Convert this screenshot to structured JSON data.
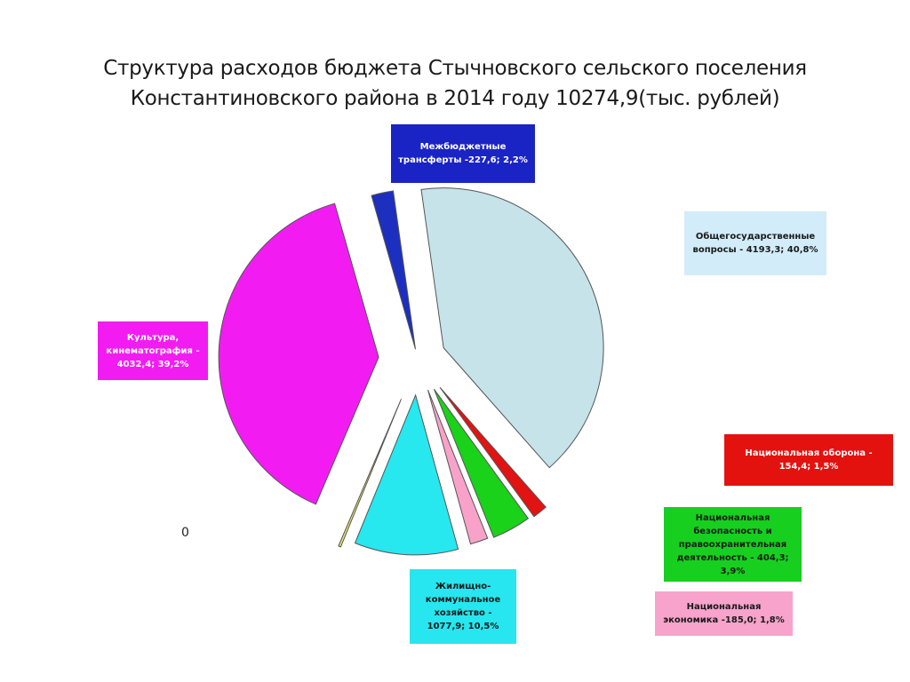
{
  "title_line1": "Структура расходов бюджета Стычновского сельского поселения",
  "title_line2": "Константиновского района в 2014 году 10274,9(тыс. рублей)",
  "stray_text": "0",
  "chart_data": {
    "type": "pie",
    "title": "Структура расходов бюджета Стычновского сельского поселения Константиновского района в 2014 году 10274,9(тыс. рублей)",
    "unit": "тыс. рублей",
    "total": 10274.9,
    "exploded": true,
    "slices": [
      {
        "id": "general",
        "label": "Общегосударственные вопросы - 4193,3; 40,8%",
        "value": 4193.3,
        "color": "#c6e3ea",
        "label_bg": "#d2ecf9",
        "label_color": "#1a1a1a"
      },
      {
        "id": "defense",
        "label": "Национальная оборона - 154,4; 1,5%",
        "value": 154.4,
        "color": "#e11313",
        "label_bg": "#e3120f",
        "label_color": "#ffffff"
      },
      {
        "id": "security",
        "label": "Национальная безопасность и правоохранительная деятельность - 404,3; 3,9%",
        "value": 404.3,
        "color": "#19d219",
        "label_bg": "#17cf1f",
        "label_color": "#1a1a1a"
      },
      {
        "id": "economy",
        "label": "Национальная экономика -185,0; 1,8%",
        "value": 185.0,
        "color": "#f9a2c9",
        "label_bg": "#f7a3cb",
        "label_color": "#1a1a1a"
      },
      {
        "id": "housing",
        "label": "Жилищно-коммунальное хозяйство - 1077,9; 10,5%",
        "value": 1077.9,
        "color": "#26e8ee",
        "label_bg": "#27e6ef",
        "label_color": "#1a1a1a"
      },
      {
        "id": "education",
        "label": "",
        "value": 25.0,
        "color": "#e3e36a",
        "label_bg": "",
        "label_color": ""
      },
      {
        "id": "culture",
        "label": "Культура, кинематография - 4032,4; 39,2%",
        "value": 4032.4,
        "color": "#f21cf2",
        "label_bg": "#f21cf2",
        "label_color": "#ffffff"
      },
      {
        "id": "transfers",
        "label": "Межбюджетные трансферты -227,6; 2,2%",
        "value": 227.6,
        "color": "#1c2fbf",
        "label_bg": "#1a24c4",
        "label_color": "#ffffff"
      }
    ]
  }
}
